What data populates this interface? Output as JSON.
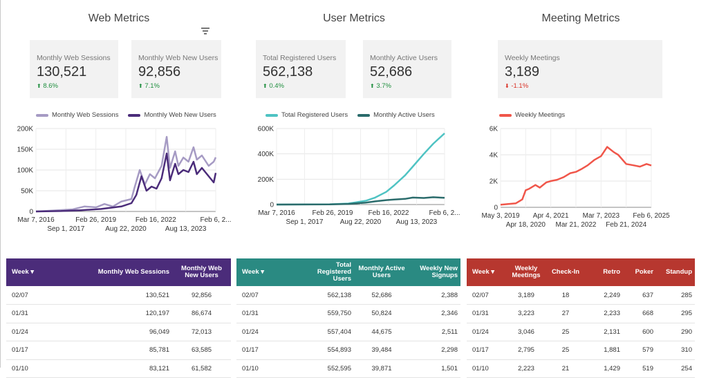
{
  "sections": {
    "web": "Web Metrics",
    "user": "User Metrics",
    "meeting": "Meeting Metrics"
  },
  "icons": {
    "filter": "filter-icon",
    "sort": "sort-descending-icon",
    "arrow_up": "arrow-up-icon",
    "arrow_down": "arrow-down-icon"
  },
  "colors": {
    "up": "#1e8e3e",
    "down": "#d93025"
  },
  "kpis": {
    "web_sessions": {
      "label": "Monthly Web Sessions",
      "value": "130,521",
      "change": "8.6%",
      "direction": "up"
    },
    "web_new_users": {
      "label": "Monthly Web New Users",
      "value": "92,856",
      "change": "7.1%",
      "direction": "up"
    },
    "total_registered": {
      "label": "Total Registered Users",
      "value": "562,138",
      "change": "0.4%",
      "direction": "up"
    },
    "monthly_active": {
      "label": "Monthly Active Users",
      "value": "52,686",
      "change": "3.7%",
      "direction": "up"
    },
    "weekly_meetings": {
      "label": "Weekly Meetings",
      "value": "3,189",
      "change": "-1.1%",
      "direction": "down"
    }
  },
  "chart_data": [
    {
      "type": "line",
      "x_range": [
        "2016-03-07",
        "2025-02-06"
      ],
      "ylim": [
        0,
        200000
      ],
      "y_ticks": [
        "0",
        "50K",
        "100K",
        "150K",
        "200K"
      ],
      "x_ticks_top": [
        "Mar 7, 2016",
        "Feb 26, 2019",
        "Feb 16, 2022",
        "Feb 6, 2..."
      ],
      "x_ticks_bottom": [
        "Sep 1, 2017",
        "Aug 22, 2020",
        "Aug 13, 2023"
      ],
      "series": [
        {
          "name": "Monthly Web Sessions",
          "color": "#a69bc4",
          "points": [
            [
              "2016-03-07",
              0
            ],
            [
              "2017-01-01",
              2000
            ],
            [
              "2018-01-01",
              5000
            ],
            [
              "2018-08-01",
              12000
            ],
            [
              "2019-03-01",
              10000
            ],
            [
              "2019-08-01",
              18000
            ],
            [
              "2020-01-01",
              12000
            ],
            [
              "2020-06-01",
              24000
            ],
            [
              "2020-12-01",
              30000
            ],
            [
              "2021-02-01",
              60000
            ],
            [
              "2021-05-01",
              100000
            ],
            [
              "2021-08-01",
              65000
            ],
            [
              "2021-11-01",
              90000
            ],
            [
              "2022-02-01",
              80000
            ],
            [
              "2022-06-01",
              110000
            ],
            [
              "2022-09-01",
              180000
            ],
            [
              "2022-11-01",
              105000
            ],
            [
              "2023-02-01",
              145000
            ],
            [
              "2023-04-01",
              110000
            ],
            [
              "2023-07-01",
              130000
            ],
            [
              "2023-10-01",
              120000
            ],
            [
              "2024-01-01",
              155000
            ],
            [
              "2024-03-01",
              125000
            ],
            [
              "2024-06-01",
              135000
            ],
            [
              "2024-10-01",
              110000
            ],
            [
              "2025-01-01",
              120000
            ],
            [
              "2025-02-06",
              130521
            ]
          ]
        },
        {
          "name": "Monthly Web New Users",
          "color": "#4b2c7a",
          "points": [
            [
              "2016-03-07",
              0
            ],
            [
              "2017-06-01",
              1000
            ],
            [
              "2018-06-01",
              3000
            ],
            [
              "2019-06-01",
              6000
            ],
            [
              "2020-06-01",
              12000
            ],
            [
              "2020-12-01",
              20000
            ],
            [
              "2021-03-01",
              40000
            ],
            [
              "2021-06-01",
              85000
            ],
            [
              "2021-09-01",
              50000
            ],
            [
              "2021-12-01",
              60000
            ],
            [
              "2022-03-01",
              55000
            ],
            [
              "2022-06-01",
              80000
            ],
            [
              "2022-09-01",
              140000
            ],
            [
              "2022-11-01",
              75000
            ],
            [
              "2023-02-01",
              115000
            ],
            [
              "2023-04-01",
              90000
            ],
            [
              "2023-07-01",
              100000
            ],
            [
              "2023-10-01",
              95000
            ],
            [
              "2024-01-01",
              120000
            ],
            [
              "2024-03-01",
              90000
            ],
            [
              "2024-06-01",
              105000
            ],
            [
              "2024-10-01",
              85000
            ],
            [
              "2025-01-01",
              70000
            ],
            [
              "2025-02-06",
              92856
            ]
          ]
        }
      ]
    },
    {
      "type": "line",
      "x_range": [
        "2016-03-07",
        "2025-02-06"
      ],
      "ylim": [
        0,
        600000
      ],
      "y_ticks": [
        "0",
        "200K",
        "400K",
        "600K"
      ],
      "x_ticks_top": [
        "Mar 7, 2016",
        "Feb 26, 2019",
        "Feb 16, 2022",
        "Feb 6, 2..."
      ],
      "x_ticks_bottom": [
        "Sep 1, 2017",
        "Aug 22, 2020",
        "Aug 13, 2023"
      ],
      "series": [
        {
          "name": "Total Registered Users",
          "color": "#4fc3c3",
          "points": [
            [
              "2016-03-07",
              0
            ],
            [
              "2019-01-01",
              2000
            ],
            [
              "2020-01-01",
              8000
            ],
            [
              "2020-12-01",
              30000
            ],
            [
              "2021-06-01",
              55000
            ],
            [
              "2022-01-01",
              100000
            ],
            [
              "2022-06-01",
              150000
            ],
            [
              "2023-01-01",
              230000
            ],
            [
              "2023-06-01",
              300000
            ],
            [
              "2024-01-01",
              400000
            ],
            [
              "2024-07-01",
              480000
            ],
            [
              "2025-02-06",
              562138
            ]
          ]
        },
        {
          "name": "Monthly Active Users",
          "color": "#2a6b6b",
          "points": [
            [
              "2016-03-07",
              0
            ],
            [
              "2019-01-01",
              1000
            ],
            [
              "2020-01-01",
              5000
            ],
            [
              "2020-12-01",
              15000
            ],
            [
              "2021-06-01",
              25000
            ],
            [
              "2022-01-01",
              35000
            ],
            [
              "2022-06-01",
              40000
            ],
            [
              "2023-01-01",
              45000
            ],
            [
              "2023-06-01",
              55000
            ],
            [
              "2024-01-01",
              52000
            ],
            [
              "2024-07-01",
              58000
            ],
            [
              "2025-02-06",
              52686
            ]
          ]
        }
      ]
    },
    {
      "type": "line",
      "x_range": [
        "2019-05-03",
        "2025-02-06"
      ],
      "ylim": [
        0,
        6000
      ],
      "y_ticks": [
        "0",
        "2K",
        "4K",
        "6K"
      ],
      "x_ticks_top": [
        "May 3, 2019",
        "Apr 4, 2021",
        "Mar 7, 2023",
        "Feb 6, 2025"
      ],
      "x_ticks_bottom": [
        "Apr 18, 2020",
        "Mar 21, 2022",
        "Feb 21, 2024"
      ],
      "series": [
        {
          "name": "Weekly Meetings",
          "color": "#f0564a",
          "points": [
            [
              "2019-05-03",
              200
            ],
            [
              "2019-12-01",
              300
            ],
            [
              "2020-03-01",
              600
            ],
            [
              "2020-04-18",
              1300
            ],
            [
              "2020-06-01",
              1400
            ],
            [
              "2020-09-01",
              1700
            ],
            [
              "2020-11-01",
              1500
            ],
            [
              "2021-02-01",
              1900
            ],
            [
              "2021-04-04",
              2000
            ],
            [
              "2021-07-01",
              2100
            ],
            [
              "2021-10-01",
              2300
            ],
            [
              "2022-01-01",
              2600
            ],
            [
              "2022-03-21",
              2700
            ],
            [
              "2022-06-01",
              2900
            ],
            [
              "2022-09-01",
              3200
            ],
            [
              "2022-12-01",
              3600
            ],
            [
              "2023-03-07",
              3900
            ],
            [
              "2023-06-01",
              4600
            ],
            [
              "2023-09-01",
              4200
            ],
            [
              "2023-11-01",
              4000
            ],
            [
              "2024-02-21",
              3300
            ],
            [
              "2024-06-01",
              3200
            ],
            [
              "2024-09-01",
              3100
            ],
            [
              "2024-12-01",
              3300
            ],
            [
              "2025-02-06",
              3189
            ]
          ]
        }
      ]
    }
  ],
  "tables": {
    "web": {
      "headers": [
        "Week",
        "Monthly Web Sessions",
        "Monthly Web New Users"
      ],
      "rows": [
        [
          "02/07",
          "130,521",
          "92,856"
        ],
        [
          "01/31",
          "120,197",
          "86,674"
        ],
        [
          "01/24",
          "96,049",
          "72,013"
        ],
        [
          "01/17",
          "85,781",
          "63,585"
        ],
        [
          "01/10",
          "83,121",
          "61,582"
        ]
      ]
    },
    "user": {
      "headers": [
        "Week",
        "Total Registered Users",
        "Monthly Active Users",
        "Weekly New Signups"
      ],
      "rows": [
        [
          "02/07",
          "562,138",
          "52,686",
          "2,388"
        ],
        [
          "01/31",
          "559,750",
          "50,824",
          "2,346"
        ],
        [
          "01/24",
          "557,404",
          "44,675",
          "2,511"
        ],
        [
          "01/17",
          "554,893",
          "39,484",
          "2,298"
        ],
        [
          "01/10",
          "552,595",
          "39,871",
          "1,501"
        ]
      ]
    },
    "meeting": {
      "headers": [
        "Week",
        "Weekly Meetings",
        "Check-In",
        "Retro",
        "Poker",
        "Standup"
      ],
      "rows": [
        [
          "02/07",
          "3,189",
          "18",
          "2,249",
          "637",
          "285"
        ],
        [
          "01/31",
          "3,223",
          "27",
          "2,233",
          "668",
          "295"
        ],
        [
          "01/24",
          "3,046",
          "25",
          "2,131",
          "600",
          "290"
        ],
        [
          "01/17",
          "2,795",
          "25",
          "1,881",
          "579",
          "310"
        ],
        [
          "01/10",
          "2,223",
          "21",
          "1,429",
          "519",
          "254"
        ]
      ]
    }
  }
}
